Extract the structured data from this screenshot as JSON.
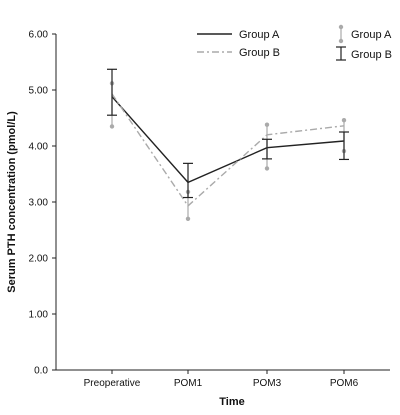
{
  "chart_data": {
    "type": "line",
    "title": "",
    "xlabel": "Time",
    "ylabel": "Serum PTH  concentration (pmol/L)",
    "categories": [
      "Preoperative",
      "POM1",
      "POM3",
      "POM6"
    ],
    "ylim": [
      0,
      6
    ],
    "yticks": [
      "0.0",
      "1.00",
      "2.00",
      "3.00",
      "4.00",
      "5.00",
      "6.00"
    ],
    "grid": false,
    "series": [
      {
        "name": "Group A",
        "values": [
          4.88,
          3.35,
          3.97,
          4.09
        ],
        "color": "#222222",
        "dash": "solid"
      },
      {
        "name": "Group B",
        "values": [
          4.93,
          2.93,
          4.2,
          4.36
        ],
        "color": "#aaaaaa",
        "dash": "dashdot"
      }
    ],
    "error_bars": [
      {
        "name": "Group A",
        "style": "dot-capped",
        "color": "#aaaaaa",
        "lower": [
          4.35,
          2.7,
          3.6,
          3.91
        ],
        "upper": [
          5.12,
          3.18,
          4.38,
          4.46
        ]
      },
      {
        "name": "Group B",
        "style": "bar-capped",
        "color": "#222222",
        "lower": [
          4.55,
          3.08,
          3.77,
          3.76
        ],
        "upper": [
          5.37,
          3.69,
          4.12,
          4.25
        ]
      }
    ],
    "legend": {
      "placement": "top-right",
      "line_entries": [
        "Group A",
        "Group B"
      ],
      "errorbar_entries": [
        "Group A",
        "Group B"
      ]
    }
  }
}
